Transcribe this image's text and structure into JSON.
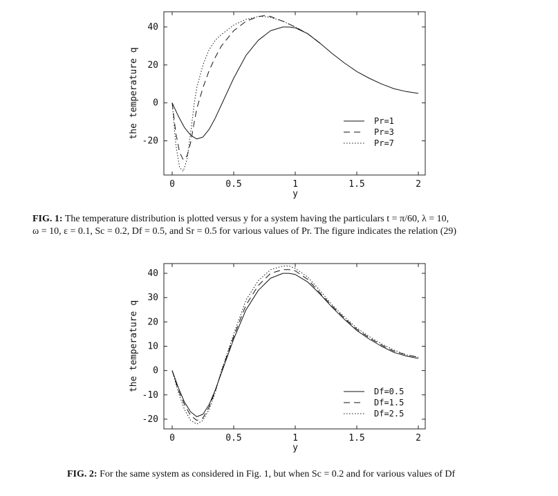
{
  "captions": {
    "fig1_label": "FIG. 1:",
    "fig1_text_line1": "The temperature distribution is plotted versus y for a system having the particulars t = π/60, λ = 10,",
    "fig1_text_line2": "ω = 10, ε = 0.1, Sc = 0.2, Df = 0.5, and Sr = 0.5 for various values of Pr. The figure indicates the relation (29)",
    "fig2_label": "FIG. 2:",
    "fig2_text": "For the same system as considered in Fig. 1, but when Sc = 0.2 and for various values of Df"
  },
  "chart_data": [
    {
      "type": "line",
      "xlabel": "y",
      "ylabel": "the temperature q",
      "xlim": [
        0,
        2
      ],
      "ylim": [
        -38,
        48
      ],
      "xticks": [
        0,
        0.5,
        1,
        1.5,
        2
      ],
      "xtick_labels": [
        "0",
        "0.5",
        "1",
        "1.5",
        "2"
      ],
      "yticks": [
        -20,
        0,
        20,
        40
      ],
      "ytick_labels": [
        "-20",
        "0",
        "20",
        "40"
      ],
      "legend_position": "right",
      "series": [
        {
          "name": "Pr=1",
          "style": "solid",
          "x": [
            0,
            0.05,
            0.1,
            0.15,
            0.2,
            0.25,
            0.3,
            0.35,
            0.4,
            0.5,
            0.6,
            0.7,
            0.8,
            0.9,
            0.95,
            1.0,
            1.1,
            1.2,
            1.3,
            1.4,
            1.5,
            1.6,
            1.7,
            1.8,
            1.9,
            2.0
          ],
          "y": [
            0,
            -7,
            -13,
            -17,
            -19,
            -18,
            -14,
            -8,
            -1,
            13,
            25,
            33,
            38,
            40,
            40,
            39.5,
            36.5,
            31.5,
            26,
            21,
            16.5,
            13,
            10,
            7.5,
            6,
            5
          ]
        },
        {
          "name": "Pr=3",
          "style": "dashed",
          "x": [
            0,
            0.03,
            0.06,
            0.09,
            0.12,
            0.15,
            0.18,
            0.2,
            0.25,
            0.3,
            0.35,
            0.4,
            0.5,
            0.6,
            0.7,
            0.75,
            0.8,
            0.9,
            1.0,
            1.1,
            1.2
          ],
          "y": [
            0,
            -16,
            -26,
            -30,
            -28,
            -21,
            -10,
            -3,
            8,
            17,
            24,
            30,
            38,
            43,
            45.5,
            46,
            45.5,
            43,
            40,
            36.5,
            31.5
          ]
        },
        {
          "name": "Pr=7",
          "style": "dotted",
          "x": [
            0,
            0.03,
            0.06,
            0.09,
            0.12,
            0.15,
            0.18,
            0.2,
            0.25,
            0.3,
            0.35,
            0.4,
            0.5,
            0.6,
            0.7,
            0.75,
            0.8,
            0.9,
            1.0,
            1.1,
            1.2
          ],
          "y": [
            0,
            -22,
            -34,
            -36,
            -30,
            -16,
            0,
            8,
            20,
            28,
            33,
            36,
            41,
            44,
            45.5,
            45.5,
            45,
            43,
            40,
            36.5,
            31.5
          ]
        }
      ],
      "legend": [
        "Pr=1",
        "Pr=3",
        "Pr=7"
      ]
    },
    {
      "type": "line",
      "xlabel": "y",
      "ylabel": "the temperature q",
      "xlim": [
        0,
        2
      ],
      "ylim": [
        -24,
        44
      ],
      "xticks": [
        0,
        0.5,
        1,
        1.5,
        2
      ],
      "xtick_labels": [
        "0",
        "0.5",
        "1",
        "1.5",
        "2"
      ],
      "yticks": [
        -20,
        -10,
        0,
        10,
        20,
        30,
        40
      ],
      "ytick_labels": [
        "-20",
        "-10",
        "0",
        "10",
        "20",
        "30",
        "40"
      ],
      "legend_position": "bottom-right",
      "series": [
        {
          "name": "Df=0.5",
          "style": "solid",
          "x": [
            0,
            0.05,
            0.1,
            0.15,
            0.2,
            0.25,
            0.3,
            0.35,
            0.4,
            0.5,
            0.6,
            0.7,
            0.8,
            0.9,
            0.95,
            1.0,
            1.1,
            1.2,
            1.3,
            1.4,
            1.5,
            1.6,
            1.7,
            1.8,
            1.9,
            2.0
          ],
          "y": [
            0,
            -7,
            -13,
            -17,
            -19,
            -18,
            -14,
            -8,
            -1,
            13,
            25,
            33,
            38,
            40,
            40,
            39.5,
            36.5,
            31.5,
            26,
            21,
            16.5,
            13,
            10,
            7.5,
            6,
            5
          ]
        },
        {
          "name": "Df=1.5",
          "style": "dashed",
          "x": [
            0,
            0.05,
            0.1,
            0.15,
            0.2,
            0.25,
            0.3,
            0.35,
            0.4,
            0.5,
            0.6,
            0.7,
            0.8,
            0.9,
            0.95,
            1.0,
            1.1,
            1.2,
            1.3,
            1.4,
            1.5,
            1.6,
            1.7,
            1.8,
            1.9,
            2.0
          ],
          "y": [
            0,
            -8,
            -14,
            -18.5,
            -20.5,
            -19.5,
            -15,
            -8.5,
            -0.5,
            14,
            27,
            35,
            40,
            41.5,
            41.5,
            41,
            37.5,
            32,
            26.5,
            21.5,
            17,
            13.5,
            10.5,
            8,
            6.5,
            5.5
          ]
        },
        {
          "name": "Df=2.5",
          "style": "dotted",
          "x": [
            0,
            0.05,
            0.1,
            0.15,
            0.2,
            0.25,
            0.3,
            0.35,
            0.4,
            0.5,
            0.6,
            0.7,
            0.8,
            0.9,
            0.95,
            1.0,
            1.1,
            1.2,
            1.3,
            1.4,
            1.5,
            1.6,
            1.7,
            1.8,
            1.9,
            2.0
          ],
          "y": [
            0,
            -9,
            -16,
            -20.5,
            -22,
            -20.5,
            -16,
            -9,
            0,
            15,
            29,
            37,
            41.5,
            43,
            43,
            42,
            38.5,
            33,
            27,
            22,
            17.5,
            14,
            11,
            8.5,
            6.5,
            5.5
          ]
        }
      ],
      "legend": [
        "Df=0.5",
        "Df=1.5",
        "Df=2.5"
      ]
    }
  ]
}
